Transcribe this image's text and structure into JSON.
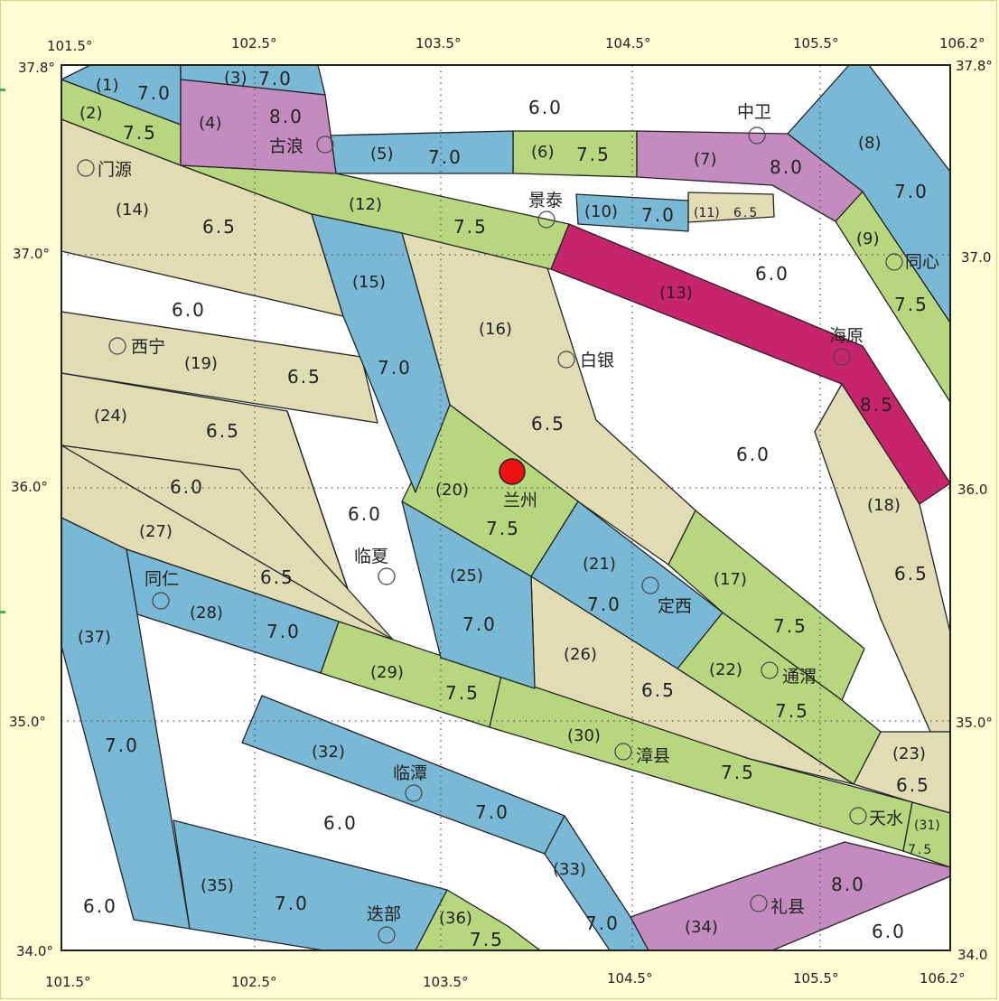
{
  "map": {
    "lon_top": [
      "101.5°",
      "102.5°",
      "103.5°",
      "104.5°",
      "105.5°",
      "106.2°"
    ],
    "lon_bottom": [
      "101.5°",
      "102.5°",
      "103.5°",
      "104.5°",
      "105.5°",
      "106.2°"
    ],
    "lat_left": [
      "37.8°",
      "37.0°",
      "36.0°",
      "35.0°",
      "34.0°"
    ],
    "lat_right": [
      "37.8°",
      "37.0",
      "36.0",
      "35.0°",
      "34.0"
    ],
    "colors": {
      "blue": "#79b9d6",
      "green": "#b6d77e",
      "purple": "#c48bbf",
      "beige": "#e0dcb3",
      "magenta": "#c8246e",
      "white": "#ffffff",
      "marker": "#ee1111"
    },
    "zones": [
      {
        "id": "(1)",
        "value": "7.0"
      },
      {
        "id": "(2)",
        "value": "7.5"
      },
      {
        "id": "(3)",
        "value": "7.0"
      },
      {
        "id": "(4)",
        "value": "8.0"
      },
      {
        "id": "(5)",
        "value": "7.0"
      },
      {
        "id": "(6)",
        "value": "7.5"
      },
      {
        "id": "(7)",
        "value": "8.0"
      },
      {
        "id": "(8)",
        "value": "7.0"
      },
      {
        "id": "(9)",
        "value": "7.5"
      },
      {
        "id": "(10)",
        "value": "7.0"
      },
      {
        "id": "(11)",
        "value": "6.5"
      },
      {
        "id": "(12)",
        "value": "7.5"
      },
      {
        "id": "(13)",
        "value": "8.5"
      },
      {
        "id": "(14)",
        "value": "6.5"
      },
      {
        "id": "(15)",
        "value": "7.0"
      },
      {
        "id": "(16)",
        "value": "6.5"
      },
      {
        "id": "(17)",
        "value": "7.5"
      },
      {
        "id": "(18)",
        "value": "6.5"
      },
      {
        "id": "(19)",
        "value": "6.5"
      },
      {
        "id": "(20)",
        "value": "7.5"
      },
      {
        "id": "(21)",
        "value": "7.0"
      },
      {
        "id": "(22)",
        "value": "7.5"
      },
      {
        "id": "(23)",
        "value": "6.5"
      },
      {
        "id": "(24)",
        "value": "6.5"
      },
      {
        "id": "(25)",
        "value": "7.0"
      },
      {
        "id": "(26)",
        "value": "6.5"
      },
      {
        "id": "(27)",
        "value": "6.5"
      },
      {
        "id": "(28)",
        "value": "7.0"
      },
      {
        "id": "(29)",
        "value": "7.5"
      },
      {
        "id": "(30)",
        "value": "7.5"
      },
      {
        "id": "(31)",
        "value": "7.5"
      },
      {
        "id": "(32)",
        "value": "7.0"
      },
      {
        "id": "(33)",
        "value": "7.0"
      },
      {
        "id": "(34)",
        "value": "8.0"
      },
      {
        "id": "(35)",
        "value": "7.0"
      },
      {
        "id": "(36)",
        "value": "7.5"
      },
      {
        "id": "(37)",
        "value": "7.0"
      }
    ],
    "background_value": "6.0",
    "cities": [
      "门源",
      "古浪",
      "景泰",
      "中卫",
      "同心",
      "海原",
      "白银",
      "兰州",
      "西宁",
      "临夏",
      "定西",
      "同仁",
      "通渭",
      "漳县",
      "临潭",
      "天水",
      "礼县",
      "迭部"
    ]
  }
}
